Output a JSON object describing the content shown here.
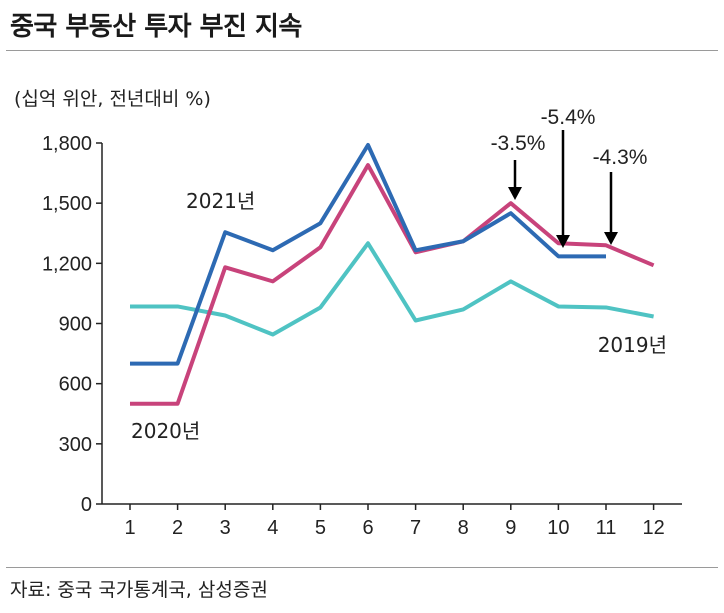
{
  "title": "중국 부동산 투자 부진 지속",
  "unit_label": "(십억 위안, 전년대비 %)",
  "source": "자료: 중국 국가통계국, 삼성증권",
  "colors": {
    "2019": "#4fc3c3",
    "2020": "#c8437b",
    "2021": "#2d6ab3",
    "axis": "#222222"
  },
  "chart_data": {
    "type": "line",
    "x": [
      1,
      2,
      3,
      4,
      5,
      6,
      7,
      8,
      9,
      10,
      11,
      12
    ],
    "ylim": [
      0,
      1800
    ],
    "yticks": [
      0,
      300,
      600,
      900,
      1200,
      1500,
      1800
    ],
    "ytick_labels": [
      "0",
      "300",
      "600",
      "900",
      "1,200",
      "1,500",
      "1,800"
    ],
    "xtick_labels": [
      "1",
      "2",
      "3",
      "4",
      "5",
      "6",
      "7",
      "8",
      "9",
      "10",
      "11",
      "12"
    ],
    "series": [
      {
        "name": "2019년",
        "key": "2019",
        "values": [
          985,
          985,
          940,
          845,
          980,
          1300,
          915,
          970,
          1110,
          985,
          980,
          935
        ]
      },
      {
        "name": "2020년",
        "key": "2020",
        "values": [
          500,
          500,
          1180,
          1110,
          1280,
          1690,
          1255,
          1310,
          1500,
          1300,
          1290,
          1190
        ]
      },
      {
        "name": "2021년",
        "key": "2021",
        "values": [
          700,
          700,
          1355,
          1265,
          1400,
          1790,
          1265,
          1310,
          1450,
          1235,
          1235,
          null
        ]
      }
    ],
    "annotations": [
      {
        "text": "-3.5%",
        "x": 9
      },
      {
        "text": "-5.4%",
        "x": 10
      },
      {
        "text": "-4.3%",
        "x": 11
      }
    ],
    "grid": false,
    "legend": "inline labels"
  }
}
